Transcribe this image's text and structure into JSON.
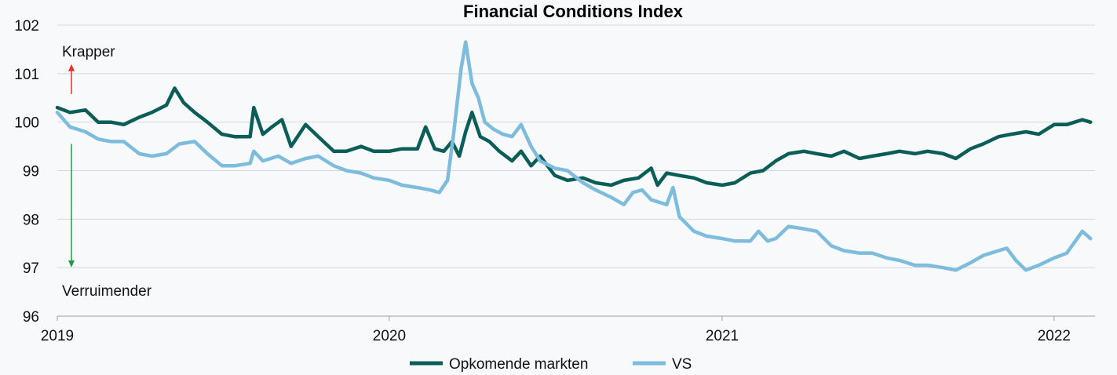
{
  "chart_data": {
    "type": "line",
    "title": "Financial Conditions Index",
    "xlabel": "",
    "ylabel": "",
    "xlim": [
      "2019-01-01",
      "2022-02-15"
    ],
    "ylim": [
      96,
      102
    ],
    "y_ticks": [
      96,
      97,
      98,
      99,
      100,
      101,
      102
    ],
    "x_ticks": [
      "2019",
      "2020",
      "2021",
      "2022"
    ],
    "x_tick_dates": [
      "2019-01-01",
      "2020-01-01",
      "2021-01-01",
      "2022-01-01"
    ],
    "grid": true,
    "legend_position": "bottom",
    "annotations": [
      {
        "text": "Krapper",
        "direction": "up",
        "color": "#e8302a"
      },
      {
        "text": "Verruimender",
        "direction": "down",
        "color": "#1f9a45"
      }
    ],
    "series": [
      {
        "name": "Opkomende markten",
        "color": "#0b5e58",
        "points": [
          [
            "2019-01-01",
            100.3
          ],
          [
            "2019-01-15",
            100.2
          ],
          [
            "2019-02-01",
            100.25
          ],
          [
            "2019-02-15",
            100.0
          ],
          [
            "2019-03-01",
            100.0
          ],
          [
            "2019-03-15",
            99.95
          ],
          [
            "2019-04-01",
            100.1
          ],
          [
            "2019-04-15",
            100.2
          ],
          [
            "2019-05-01",
            100.35
          ],
          [
            "2019-05-10",
            100.7
          ],
          [
            "2019-05-20",
            100.4
          ],
          [
            "2019-06-01",
            100.2
          ],
          [
            "2019-06-15",
            100.0
          ],
          [
            "2019-07-01",
            99.75
          ],
          [
            "2019-07-15",
            99.7
          ],
          [
            "2019-08-01",
            99.7
          ],
          [
            "2019-08-05",
            100.3
          ],
          [
            "2019-08-15",
            99.75
          ],
          [
            "2019-08-25",
            99.9
          ],
          [
            "2019-09-05",
            100.05
          ],
          [
            "2019-09-15",
            99.5
          ],
          [
            "2019-10-01",
            99.95
          ],
          [
            "2019-10-15",
            99.7
          ],
          [
            "2019-11-01",
            99.4
          ],
          [
            "2019-11-15",
            99.4
          ],
          [
            "2019-12-01",
            99.5
          ],
          [
            "2019-12-15",
            99.4
          ],
          [
            "2020-01-01",
            99.4
          ],
          [
            "2020-01-15",
            99.45
          ],
          [
            "2020-02-01",
            99.45
          ],
          [
            "2020-02-10",
            99.9
          ],
          [
            "2020-02-20",
            99.45
          ],
          [
            "2020-03-01",
            99.4
          ],
          [
            "2020-03-10",
            99.6
          ],
          [
            "2020-03-18",
            99.3
          ],
          [
            "2020-03-25",
            99.8
          ],
          [
            "2020-04-01",
            100.2
          ],
          [
            "2020-04-10",
            99.7
          ],
          [
            "2020-04-20",
            99.6
          ],
          [
            "2020-05-01",
            99.4
          ],
          [
            "2020-05-15",
            99.2
          ],
          [
            "2020-05-25",
            99.4
          ],
          [
            "2020-06-05",
            99.1
          ],
          [
            "2020-06-15",
            99.3
          ],
          [
            "2020-07-01",
            98.9
          ],
          [
            "2020-07-15",
            98.8
          ],
          [
            "2020-08-01",
            98.85
          ],
          [
            "2020-08-15",
            98.75
          ],
          [
            "2020-09-01",
            98.7
          ],
          [
            "2020-09-15",
            98.8
          ],
          [
            "2020-10-01",
            98.85
          ],
          [
            "2020-10-15",
            99.05
          ],
          [
            "2020-10-22",
            98.7
          ],
          [
            "2020-11-01",
            98.95
          ],
          [
            "2020-11-15",
            98.9
          ],
          [
            "2020-12-01",
            98.85
          ],
          [
            "2020-12-15",
            98.75
          ],
          [
            "2021-01-01",
            98.7
          ],
          [
            "2021-01-15",
            98.75
          ],
          [
            "2021-02-01",
            98.95
          ],
          [
            "2021-02-15",
            99.0
          ],
          [
            "2021-03-01",
            99.2
          ],
          [
            "2021-03-15",
            99.35
          ],
          [
            "2021-04-01",
            99.4
          ],
          [
            "2021-04-15",
            99.35
          ],
          [
            "2021-05-01",
            99.3
          ],
          [
            "2021-05-15",
            99.4
          ],
          [
            "2021-06-01",
            99.25
          ],
          [
            "2021-06-15",
            99.3
          ],
          [
            "2021-07-01",
            99.35
          ],
          [
            "2021-07-15",
            99.4
          ],
          [
            "2021-08-01",
            99.35
          ],
          [
            "2021-08-15",
            99.4
          ],
          [
            "2021-09-01",
            99.35
          ],
          [
            "2021-09-15",
            99.25
          ],
          [
            "2021-10-01",
            99.45
          ],
          [
            "2021-10-15",
            99.55
          ],
          [
            "2021-11-01",
            99.7
          ],
          [
            "2021-11-15",
            99.75
          ],
          [
            "2021-12-01",
            99.8
          ],
          [
            "2021-12-15",
            99.75
          ],
          [
            "2022-01-01",
            99.95
          ],
          [
            "2022-01-15",
            99.95
          ],
          [
            "2022-02-01",
            100.05
          ],
          [
            "2022-02-10",
            100.0
          ]
        ]
      },
      {
        "name": "VS",
        "color": "#7dbcdc",
        "points": [
          [
            "2019-01-01",
            100.2
          ],
          [
            "2019-01-15",
            99.9
          ],
          [
            "2019-02-01",
            99.8
          ],
          [
            "2019-02-15",
            99.65
          ],
          [
            "2019-03-01",
            99.6
          ],
          [
            "2019-03-15",
            99.6
          ],
          [
            "2019-04-01",
            99.35
          ],
          [
            "2019-04-15",
            99.3
          ],
          [
            "2019-05-01",
            99.35
          ],
          [
            "2019-05-15",
            99.55
          ],
          [
            "2019-06-01",
            99.6
          ],
          [
            "2019-06-15",
            99.35
          ],
          [
            "2019-07-01",
            99.1
          ],
          [
            "2019-07-15",
            99.1
          ],
          [
            "2019-08-01",
            99.15
          ],
          [
            "2019-08-05",
            99.4
          ],
          [
            "2019-08-15",
            99.2
          ],
          [
            "2019-09-01",
            99.3
          ],
          [
            "2019-09-15",
            99.15
          ],
          [
            "2019-10-01",
            99.25
          ],
          [
            "2019-10-15",
            99.3
          ],
          [
            "2019-11-01",
            99.1
          ],
          [
            "2019-11-15",
            99.0
          ],
          [
            "2019-12-01",
            98.95
          ],
          [
            "2019-12-15",
            98.85
          ],
          [
            "2020-01-01",
            98.8
          ],
          [
            "2020-01-15",
            98.7
          ],
          [
            "2020-02-01",
            98.65
          ],
          [
            "2020-02-15",
            98.6
          ],
          [
            "2020-02-25",
            98.55
          ],
          [
            "2020-03-05",
            98.8
          ],
          [
            "2020-03-12",
            99.8
          ],
          [
            "2020-03-20",
            101.1
          ],
          [
            "2020-03-25",
            101.65
          ],
          [
            "2020-04-01",
            100.8
          ],
          [
            "2020-04-08",
            100.5
          ],
          [
            "2020-04-15",
            100.0
          ],
          [
            "2020-04-25",
            99.85
          ],
          [
            "2020-05-05",
            99.75
          ],
          [
            "2020-05-15",
            99.7
          ],
          [
            "2020-05-25",
            99.95
          ],
          [
            "2020-06-05",
            99.5
          ],
          [
            "2020-06-15",
            99.2
          ],
          [
            "2020-07-01",
            99.05
          ],
          [
            "2020-07-15",
            99.0
          ],
          [
            "2020-08-01",
            98.75
          ],
          [
            "2020-08-15",
            98.6
          ],
          [
            "2020-09-01",
            98.45
          ],
          [
            "2020-09-15",
            98.3
          ],
          [
            "2020-09-25",
            98.55
          ],
          [
            "2020-10-05",
            98.6
          ],
          [
            "2020-10-15",
            98.4
          ],
          [
            "2020-11-01",
            98.3
          ],
          [
            "2020-11-08",
            98.65
          ],
          [
            "2020-11-15",
            98.05
          ],
          [
            "2020-12-01",
            97.75
          ],
          [
            "2020-12-15",
            97.65
          ],
          [
            "2021-01-01",
            97.6
          ],
          [
            "2021-01-15",
            97.55
          ],
          [
            "2021-02-01",
            97.55
          ],
          [
            "2021-02-10",
            97.75
          ],
          [
            "2021-02-20",
            97.55
          ],
          [
            "2021-03-01",
            97.6
          ],
          [
            "2021-03-15",
            97.85
          ],
          [
            "2021-04-01",
            97.8
          ],
          [
            "2021-04-15",
            97.75
          ],
          [
            "2021-05-01",
            97.45
          ],
          [
            "2021-05-15",
            97.35
          ],
          [
            "2021-06-01",
            97.3
          ],
          [
            "2021-06-15",
            97.3
          ],
          [
            "2021-07-01",
            97.2
          ],
          [
            "2021-07-15",
            97.15
          ],
          [
            "2021-08-01",
            97.05
          ],
          [
            "2021-08-15",
            97.05
          ],
          [
            "2021-09-01",
            97.0
          ],
          [
            "2021-09-15",
            96.95
          ],
          [
            "2021-10-01",
            97.1
          ],
          [
            "2021-10-15",
            97.25
          ],
          [
            "2021-11-01",
            97.35
          ],
          [
            "2021-11-10",
            97.4
          ],
          [
            "2021-11-20",
            97.15
          ],
          [
            "2021-12-01",
            96.95
          ],
          [
            "2021-12-15",
            97.05
          ],
          [
            "2022-01-01",
            97.2
          ],
          [
            "2022-01-15",
            97.3
          ],
          [
            "2022-02-01",
            97.75
          ],
          [
            "2022-02-10",
            97.6
          ]
        ]
      }
    ]
  }
}
